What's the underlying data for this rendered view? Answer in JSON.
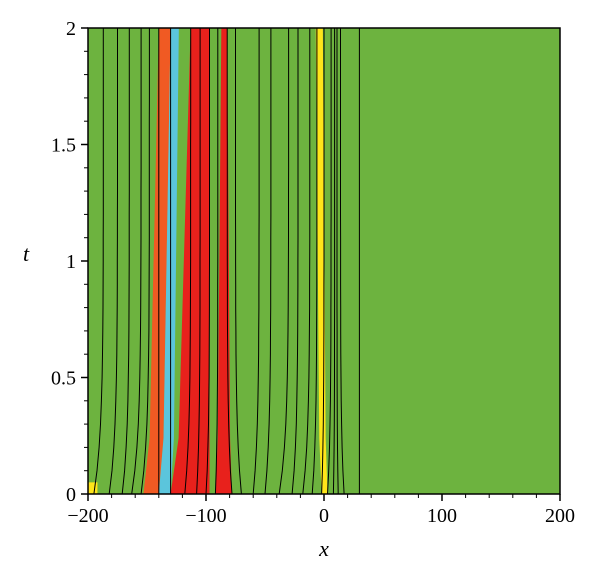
{
  "chart_data": {
    "type": "contour",
    "title": "",
    "xlabel": "x",
    "ylabel": "t",
    "xlim": [
      -200,
      200
    ],
    "ylim": [
      0,
      2
    ],
    "x_ticks": [
      -200,
      -100,
      0,
      100,
      200
    ],
    "x_tick_labels": [
      "−200",
      "−100",
      "0",
      "100",
      "200"
    ],
    "y_ticks": [
      0,
      0.5,
      1,
      1.5,
      2
    ],
    "y_tick_labels": [
      "0",
      "0.5",
      "1",
      "1.5",
      "2"
    ],
    "colors": {
      "background_fill": "#6db33f",
      "orange_band": "#f05a23",
      "red_band": "#e8211c",
      "cyan_band": "#5bc5dc",
      "yellow_band": "#ffe51a",
      "contour_line": "#000000"
    },
    "filled_bands": [
      {
        "color": "orange_band",
        "x_bottom": [
          -153,
          -140
        ],
        "x_top": [
          -140,
          -130
        ]
      },
      {
        "color": "cyan_band",
        "x_bottom": [
          -140,
          -130
        ],
        "x_top": [
          -130,
          -123
        ]
      },
      {
        "color": "red_band",
        "x_bottom": [
          -130,
          -97
        ],
        "x_top": [
          -113,
          -97
        ]
      },
      {
        "color": "red_band",
        "x_bottom": [
          -92,
          -78
        ],
        "x_top": [
          -87,
          -82
        ]
      },
      {
        "color": "yellow_band",
        "x_bottom": [
          -2,
          3
        ],
        "x_top": [
          -7,
          -1
        ]
      },
      {
        "color": "yellow_band",
        "x_bottom": [
          -200,
          -192
        ],
        "x_top": [
          -200,
          -192
        ],
        "t_range": [
          0,
          0.05
        ]
      }
    ],
    "contour_lines_x_at_t0": [
      -195,
      -182,
      -171,
      -163,
      -155,
      -140,
      -130,
      -118,
      -108,
      -100,
      -92,
      -78,
      -70,
      -60,
      -50,
      -38,
      -27,
      -18,
      -10,
      -2,
      3,
      8,
      12,
      17,
      30
    ],
    "contour_lines_x_at_t2": [
      -187,
      -175,
      -165,
      -155,
      -148,
      -140,
      -130,
      -113,
      -105,
      -97,
      -90,
      -82,
      -75,
      -55,
      -45,
      -30,
      -22,
      -12,
      -6,
      0,
      6,
      9,
      11,
      14,
      30
    ]
  }
}
